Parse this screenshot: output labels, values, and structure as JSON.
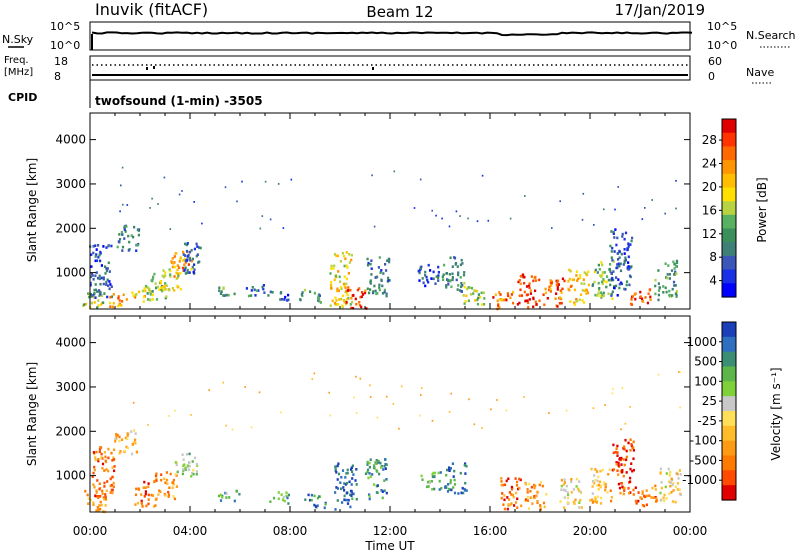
{
  "header": {
    "station": "Inuvik (fitACF)",
    "beam": "Beam 12",
    "date": "17/Jan/2019"
  },
  "noise_panel": {
    "left_label": "N.Sky",
    "right_label": "N.Search",
    "left_ticks": [
      "10^5",
      "10^0"
    ],
    "right_ticks": [
      "10^5",
      "10^0"
    ]
  },
  "freq_panel": {
    "left_label_line1": "Freq.",
    "left_label_line2": "[MHz]",
    "right_label": "Nave",
    "left_ticks": [
      "18",
      "8"
    ],
    "right_ticks": [
      "60",
      "0"
    ],
    "cpid_label": "CPID",
    "cpid_text": "twofsound (1-min) -3505"
  },
  "time_axis": {
    "label": "Time UT",
    "ticks": [
      "00:00",
      "04:00",
      "08:00",
      "12:00",
      "16:00",
      "20:00",
      "00:00"
    ]
  },
  "chart_data": [
    {
      "type": "heatmap",
      "name": "power",
      "ylabel": "Slant Range [km]",
      "yticks": [
        1000,
        2000,
        3000,
        4000
      ],
      "ylim": [
        180,
        4600
      ],
      "xlim_hours": [
        0,
        24
      ],
      "colorbar": {
        "label": "Power [dB]",
        "ticks": [
          "28",
          "24",
          "20",
          "16",
          "12",
          "8",
          "4"
        ],
        "colors": [
          "#e00000",
          "#ff3300",
          "#ff6a00",
          "#ff9500",
          "#ffbf00",
          "#ffe000",
          "#b7d341",
          "#58b061",
          "#3a8f5b",
          "#3f7f78",
          "#3a56b8",
          "#1830e6",
          "#0000ff"
        ]
      },
      "cells": [
        {
          "t": 0.1,
          "r0": 200,
          "r1": 600,
          "lvl": 6
        },
        {
          "t": 0.4,
          "r0": 400,
          "r1": 1700,
          "lvl": 10
        },
        {
          "t": 1.0,
          "r0": 250,
          "r1": 550,
          "lvl": 3
        },
        {
          "t": 1.5,
          "r0": 1500,
          "r1": 2100,
          "lvl": 9
        },
        {
          "t": 2.0,
          "r0": 350,
          "r1": 700,
          "lvl": 4
        },
        {
          "t": 2.6,
          "r0": 400,
          "r1": 1000,
          "lvl": 7
        },
        {
          "t": 3.2,
          "r0": 550,
          "r1": 1100,
          "lvl": 5
        },
        {
          "t": 3.6,
          "r0": 900,
          "r1": 1500,
          "lvl": 3
        },
        {
          "t": 4.0,
          "r0": 1000,
          "r1": 1700,
          "lvl": 10
        },
        {
          "t": 5.3,
          "r0": 500,
          "r1": 700,
          "lvl": 8
        },
        {
          "t": 6.5,
          "r0": 500,
          "r1": 750,
          "lvl": 9
        },
        {
          "t": 7.5,
          "r0": 400,
          "r1": 600,
          "lvl": 10
        },
        {
          "t": 8.8,
          "r0": 350,
          "r1": 650,
          "lvl": 8
        },
        {
          "t": 10.0,
          "r0": 250,
          "r1": 1500,
          "lvl": 5
        },
        {
          "t": 10.6,
          "r0": 200,
          "r1": 700,
          "lvl": 1
        },
        {
          "t": 11.5,
          "r0": 500,
          "r1": 1400,
          "lvl": 9
        },
        {
          "t": 13.5,
          "r0": 700,
          "r1": 1200,
          "lvl": 10
        },
        {
          "t": 14.5,
          "r0": 600,
          "r1": 1400,
          "lvl": 9
        },
        {
          "t": 15.3,
          "r0": 300,
          "r1": 800,
          "lvl": 6
        },
        {
          "t": 16.5,
          "r0": 200,
          "r1": 600,
          "lvl": 2
        },
        {
          "t": 17.5,
          "r0": 200,
          "r1": 1000,
          "lvl": 1
        },
        {
          "t": 18.5,
          "r0": 250,
          "r1": 900,
          "lvl": 2
        },
        {
          "t": 19.5,
          "r0": 300,
          "r1": 1100,
          "lvl": 4
        },
        {
          "t": 20.5,
          "r0": 400,
          "r1": 1300,
          "lvl": 7
        },
        {
          "t": 21.2,
          "r0": 500,
          "r1": 2000,
          "lvl": 10
        },
        {
          "t": 22.0,
          "r0": 300,
          "r1": 700,
          "lvl": 1
        },
        {
          "t": 23.0,
          "r0": 400,
          "r1": 1300,
          "lvl": 8
        }
      ]
    },
    {
      "type": "heatmap",
      "name": "velocity",
      "ylabel": "Slant Range [km]",
      "yticks": [
        1000,
        2000,
        3000,
        4000
      ],
      "ylim": [
        180,
        4600
      ],
      "xlim_hours": [
        0,
        24
      ],
      "colorbar": {
        "label": "Velocity [m s⁻¹]",
        "ticks": [
          "1000",
          "500",
          "100",
          "25",
          "-25",
          "-100",
          "-500",
          "-1000"
        ],
        "colors": [
          "#1a3fb8",
          "#2f6fc0",
          "#3b8e74",
          "#5cb64a",
          "#7fd13a",
          "#c8c8c8",
          "#ffdf5a",
          "#ffbc2a",
          "#ff9a14",
          "#ff7a00",
          "#ff4a00",
          "#e00000"
        ]
      },
      "cells": [
        {
          "t": 0.2,
          "r0": 200,
          "r1": 700,
          "lvl": 8
        },
        {
          "t": 0.5,
          "r0": 500,
          "r1": 1700,
          "lvl": 9
        },
        {
          "t": 1.4,
          "r0": 1500,
          "r1": 2100,
          "lvl": 7
        },
        {
          "t": 2.2,
          "r0": 300,
          "r1": 900,
          "lvl": 9
        },
        {
          "t": 3.0,
          "r0": 500,
          "r1": 1100,
          "lvl": 8
        },
        {
          "t": 3.8,
          "r0": 1000,
          "r1": 1600,
          "lvl": 4
        },
        {
          "t": 5.5,
          "r0": 450,
          "r1": 700,
          "lvl": 3
        },
        {
          "t": 7.5,
          "r0": 400,
          "r1": 650,
          "lvl": 3
        },
        {
          "t": 9.0,
          "r0": 300,
          "r1": 600,
          "lvl": 2
        },
        {
          "t": 10.2,
          "r0": 250,
          "r1": 1300,
          "lvl": 1
        },
        {
          "t": 11.4,
          "r0": 500,
          "r1": 1400,
          "lvl": 2
        },
        {
          "t": 13.6,
          "r0": 700,
          "r1": 1100,
          "lvl": 3
        },
        {
          "t": 14.6,
          "r0": 600,
          "r1": 1300,
          "lvl": 1
        },
        {
          "t": 16.8,
          "r0": 250,
          "r1": 1000,
          "lvl": 9
        },
        {
          "t": 17.8,
          "r0": 250,
          "r1": 900,
          "lvl": 8
        },
        {
          "t": 19.2,
          "r0": 300,
          "r1": 1000,
          "lvl": 6
        },
        {
          "t": 20.4,
          "r0": 400,
          "r1": 1200,
          "lvl": 7
        },
        {
          "t": 21.3,
          "r0": 600,
          "r1": 1900,
          "lvl": 10
        },
        {
          "t": 22.2,
          "r0": 300,
          "r1": 800,
          "lvl": 9
        },
        {
          "t": 23.2,
          "r0": 400,
          "r1": 1200,
          "lvl": 6
        }
      ]
    }
  ]
}
